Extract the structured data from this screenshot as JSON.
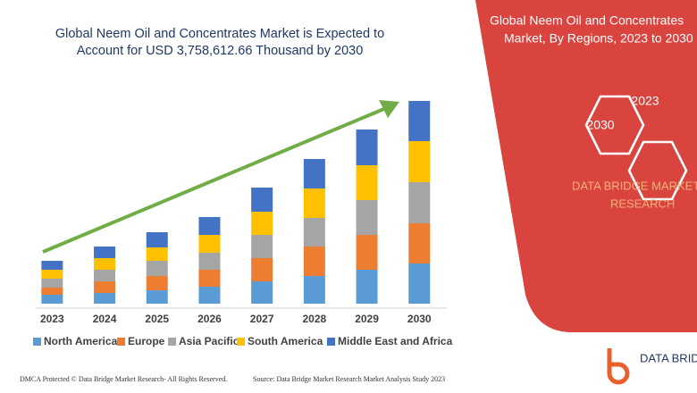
{
  "chart_data": {
    "type": "stacked_bar",
    "title_lines": [
      "Global Neem Oil and Concentrates Market is Expected to",
      "Account for USD 3,758,612.66 Thousand by 2030"
    ],
    "categories": [
      "2023",
      "2024",
      "2025",
      "2026",
      "2027",
      "2028",
      "2029",
      "2030"
    ],
    "series": [
      {
        "name": "North America",
        "color": "#5b9bd5",
        "values": [
          10,
          12,
          15,
          19,
          25,
          31,
          38,
          45
        ]
      },
      {
        "name": "Europe",
        "color": "#ed7d31",
        "values": [
          8,
          13,
          16,
          19,
          26,
          33,
          39,
          45
        ]
      },
      {
        "name": "Asia Pacific",
        "color": "#a5a5a5",
        "values": [
          10,
          13,
          17,
          19,
          26,
          32,
          39,
          46
        ]
      },
      {
        "name": "South America",
        "color": "#ffc000",
        "values": [
          10,
          13,
          15,
          20,
          26,
          33,
          39,
          46
        ]
      },
      {
        "name": "Middle East and Africa",
        "color": "#4472c4",
        "values": [
          10,
          13,
          17,
          20,
          27,
          33,
          40,
          45
        ]
      }
    ],
    "ylim": [
      0,
      230
    ]
  },
  "panel": {
    "title_lines": [
      "Global Neem Oil and Concentrates",
      "Market, By Regions, 2023 to 2030"
    ],
    "hex_labels": [
      "2023",
      "2030"
    ],
    "brand_lines": [
      "DATA BRIDGE MARKET",
      "RESEARCH"
    ]
  },
  "logo": {
    "text": "DATA BRIDGE"
  },
  "footer": {
    "left": "DMCA Protected © Data Bridge Market Research- All Rights Reserved.",
    "right": "Source: Data Bridge Market Research Market Analysis Study 2023"
  }
}
